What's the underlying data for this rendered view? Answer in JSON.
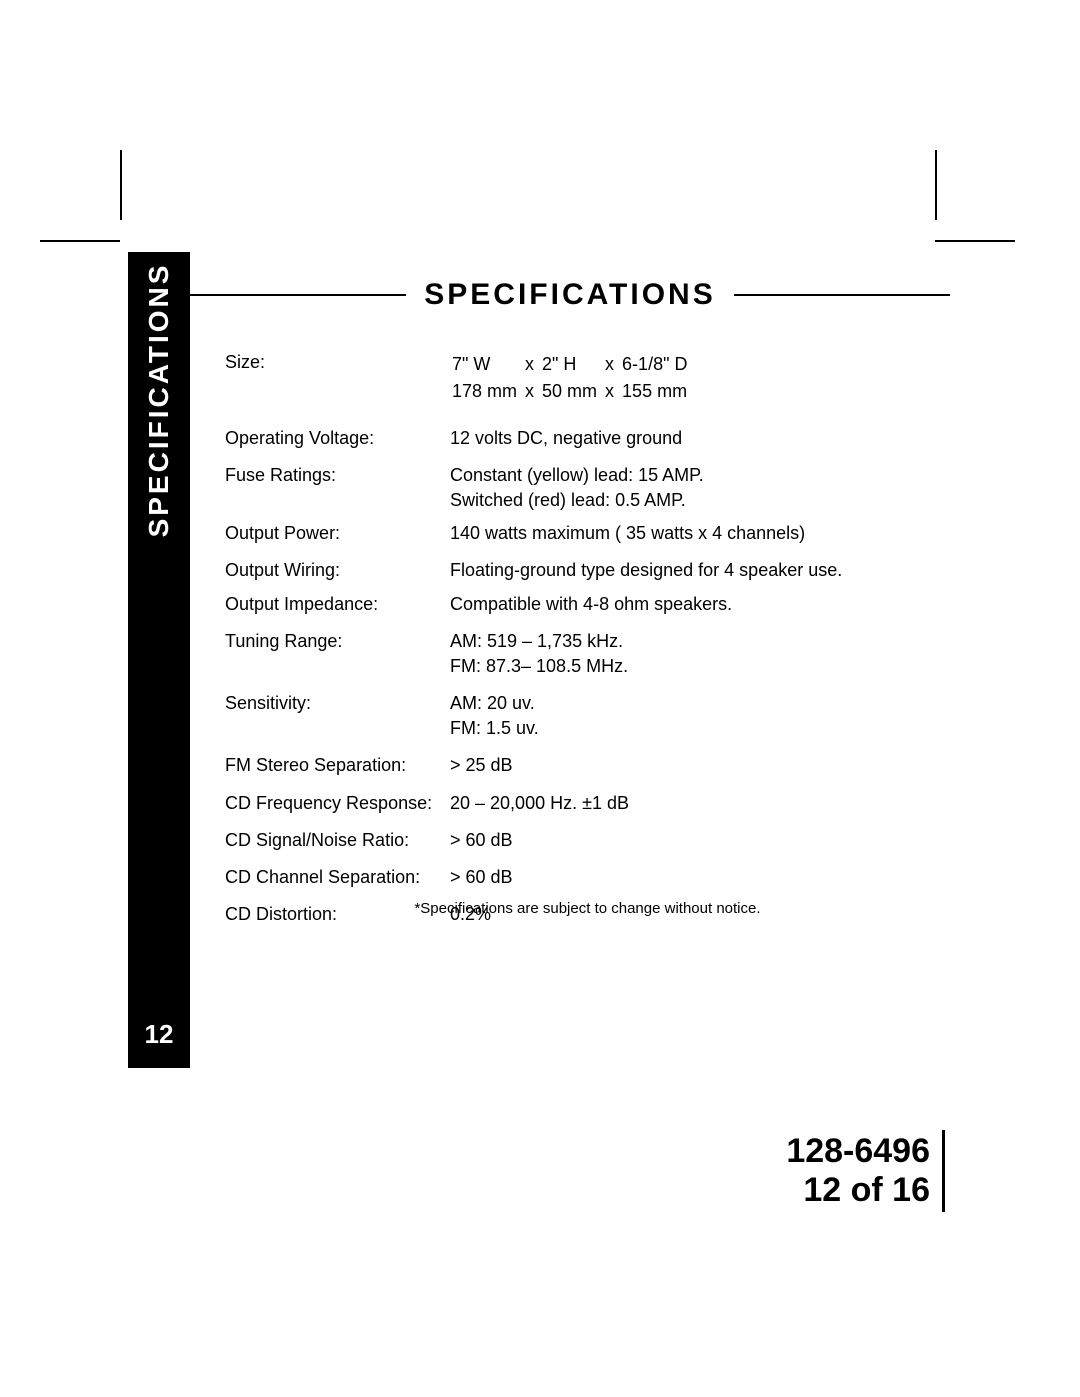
{
  "colors": {
    "page_bg": "#ffffff",
    "text": "#000000",
    "sidebar_bg": "#000000",
    "sidebar_text": "#ffffff",
    "rule": "#000000"
  },
  "typography": {
    "body_fontsize_pt": 14,
    "heading_fontsize_pt": 22,
    "sidebar_title_fontsize_pt": 22,
    "footer_fontsize_pt": 26,
    "footnote_fontsize_pt": 11,
    "font_family": "Arial, Helvetica, sans-serif"
  },
  "sidebar": {
    "title": "SPECIFICATIONS",
    "page_number": "12"
  },
  "heading": "SPECIFICATIONS",
  "specs": {
    "size": {
      "label": "Size:",
      "imperial": {
        "w": "7\" W",
        "x1": "x",
        "h": "2\" H",
        "x2": "x",
        "d": "6-1/8\" D"
      },
      "metric": {
        "w": "178 mm",
        "x1": "x",
        "h": "50 mm",
        "x2": "x",
        "d": "155 mm"
      }
    },
    "voltage": {
      "label": "Operating Voltage:",
      "value": "12 volts DC, negative ground"
    },
    "fuse": {
      "label": "Fuse Ratings:",
      "line1": "Constant (yellow) lead: 15 AMP.",
      "line2": "Switched (red) lead: 0.5 AMP."
    },
    "power": {
      "label": "Output Power:",
      "value": "140 watts maximum ( 35 watts x 4 channels)"
    },
    "wiring": {
      "label": "Output Wiring:",
      "value": "Floating-ground type designed for 4 speaker use."
    },
    "impedance": {
      "label": "Output Impedance:",
      "value": "Compatible with 4-8 ohm speakers."
    },
    "tuning": {
      "label": "Tuning Range:",
      "line1": "AM: 519 – 1,735 kHz.",
      "line2": "FM: 87.3– 108.5 MHz."
    },
    "sensitivity": {
      "label": "Sensitivity:",
      "line1": "AM: 20 uv.",
      "line2": "FM: 1.5 uv."
    },
    "fmsep": {
      "label": "FM Stereo Separation:",
      "value": "> 25 dB"
    },
    "cdfreq": {
      "label": "CD Frequency Response:",
      "value": "20 – 20,000 Hz. ±1 dB"
    },
    "cdsnr": {
      "label": "CD Signal/Noise Ratio:",
      "value": "> 60 dB"
    },
    "cdchan": {
      "label": "CD Channel Separation:",
      "value": "> 60 dB"
    },
    "cddist": {
      "label": "CD Distortion:",
      "value": "0.2%"
    }
  },
  "footnote": "*Specifications are subject to change without notice.",
  "footer": {
    "doc_number": "128-6496",
    "page_of": "12 of 16"
  }
}
